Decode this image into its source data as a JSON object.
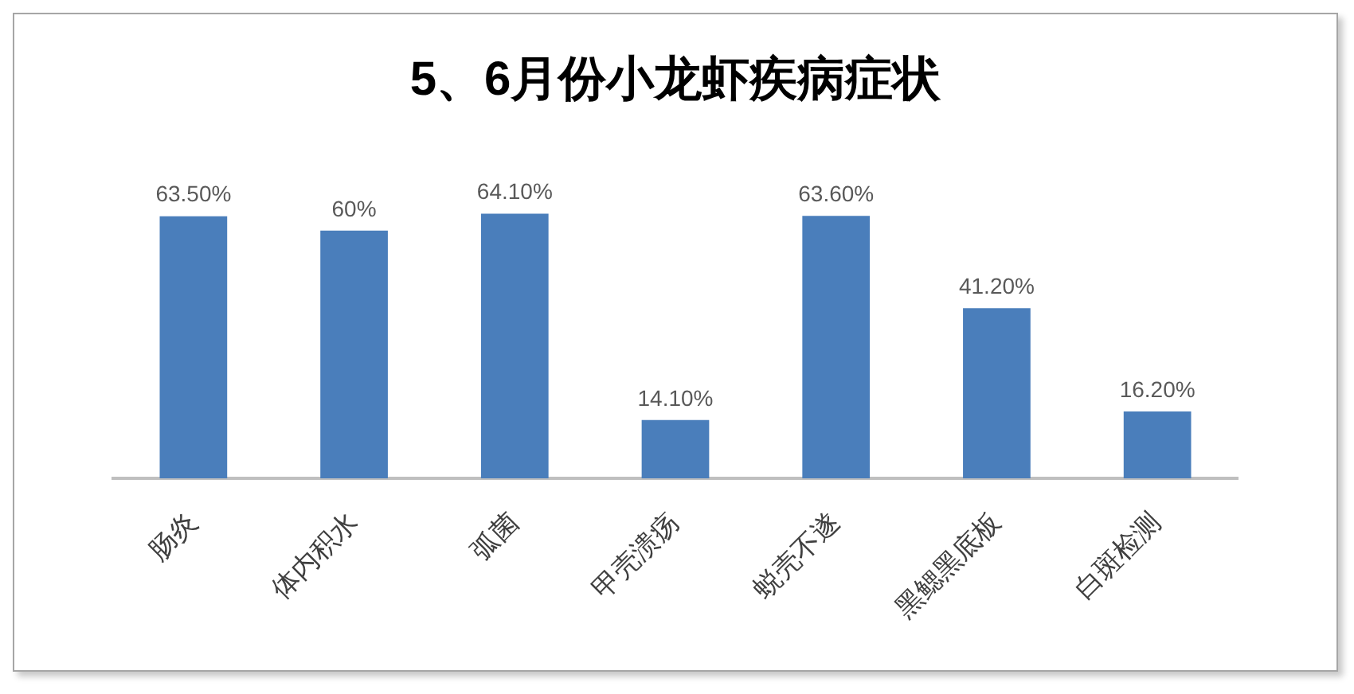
{
  "chart_data": {
    "type": "bar",
    "title": "5、6月份小龙虾疾病症状",
    "categories": [
      "肠炎",
      "体内积水",
      "弧菌",
      "甲壳溃疡",
      "蜕壳不遂",
      "黑鳃黑底板",
      "白斑检测"
    ],
    "values": [
      63.5,
      60,
      64.1,
      14.1,
      63.6,
      41.2,
      16.2
    ],
    "value_labels": [
      "63.50%",
      "60%",
      "64.10%",
      "14.10%",
      "63.60%",
      "41.20%",
      "16.20%"
    ],
    "color": "#4a7ebb",
    "tick_labels": "x"
  }
}
